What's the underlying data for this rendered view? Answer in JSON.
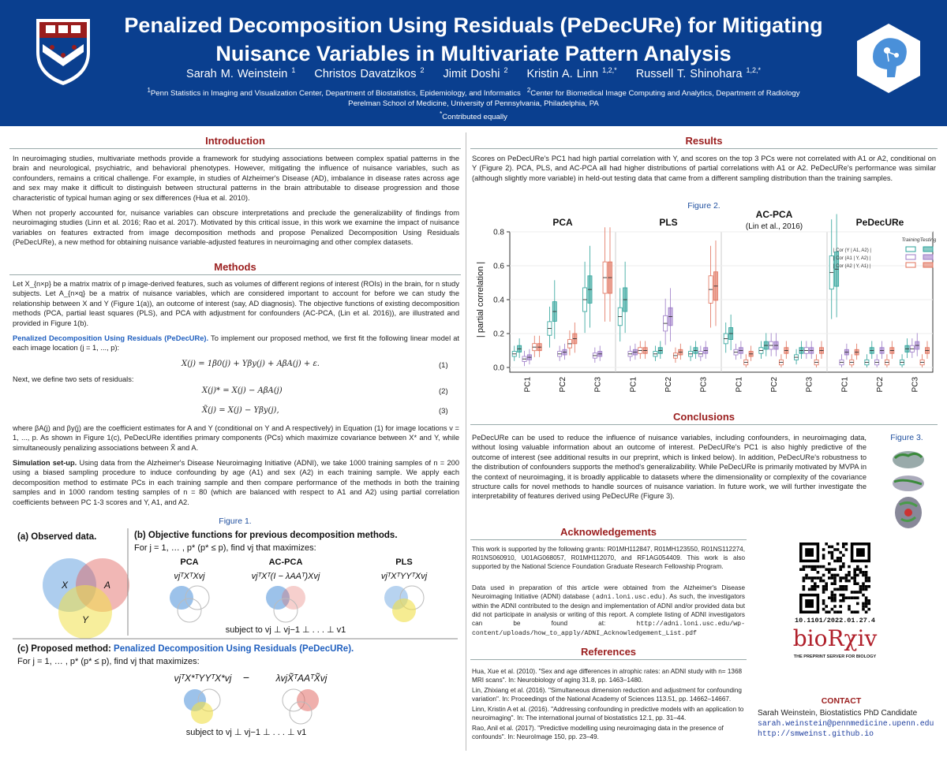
{
  "header": {
    "title_line1": "Penalized Decomposition Using Residuals (PeDecURe) for Mitigating",
    "title_line2": "Nuisance Variables in Multivariate Pattern Analysis",
    "authors": [
      {
        "name": "Sarah M. Weinstein",
        "sup": "1"
      },
      {
        "name": "Christos Davatzikos",
        "sup": "2"
      },
      {
        "name": "Jimit Doshi",
        "sup": "2"
      },
      {
        "name": "Kristin A. Linn",
        "sup": "1,2,*"
      },
      {
        "name": "Russell T. Shinohara",
        "sup": "1,2,*"
      }
    ],
    "affil_1": "Penn Statistics in Imaging and Visualization Center, Department of Biostatistics, Epidemiology, and Informatics",
    "affil_2": "Center for Biomedical Image Computing and Analytics, Department of Radiology",
    "affil_line2": "Perelman School of Medicine, University of Pennsylvania, Philadelphia, PA",
    "affil_equal": "Contributed equally",
    "sup1": "1",
    "sup2": "2",
    "supstar": "*"
  },
  "intro": {
    "title": "Introduction",
    "p1": "In neuroimaging studies, multivariate methods provide a framework for studying associations between complex spatial patterns in the brain and neurological, psychiatric, and behavioral phenotypes. However, mitigating the influence of nuisance variables, such as confounders, remains a critical challenge. For example, in studies of Alzheimer's Disease (AD), imbalance in disease rates across age and sex may make it difficult to distinguish between structural patterns in the brain attributable to disease progression and those characteristic of typical human aging or sex differences (Hua et al. 2010).",
    "p2": "When not properly accounted for, nuisance variables can obscure interpretations and preclude the generalizability of findings from neuroimaging studies (Linn et al. 2016; Rao et al. 2017). Motivated by this critical issue, in this work we examine the impact of nuisance variables on features extracted from image decomposition methods and propose Penalized Decomposition Using Residuals (PeDecURe), a new method for obtaining nuisance variable-adjusted features in neuroimaging and other complex datasets."
  },
  "methods": {
    "title": "Methods",
    "p1": "Let X_{n×p} be a matrix matrix of p image-derived features, such as volumes of different regions of interest (ROIs) in the brain, for n study subjects. Let A_{n×q} be a matrix of nuisance variables, which are considered important to account for before we can study the relationship between X and Y (Figure 1(a)), an outcome of interest (say, AD diagnosis). The objective functions of existing decomposition methods (PCA, partial least squares (PLS), and PCA with adjustment for confounders (AC-PCA, (Lin et al. 2016)), are illustrated and provided in Figure 1(b).",
    "p2_head": "Penalized Decomposition Using Residuals (PeDecURe).",
    "p2": "To implement our proposed method, we first fit the following linear model at each image location (j = 1, ..., p):",
    "eq1": "X(j) = 1β0(j) + Yβy(j) + AβA(j) + ε.",
    "eq1_num": "(1)",
    "p3": "Next, we define two sets of residuals:",
    "eq2": "X(j)* = X(j) − AβA(j)",
    "eq2_num": "(2)",
    "eq3": "X̃(j) = X(j) − Yβy(j),",
    "eq3_num": "(3)",
    "p4": "where βA(j) and βy(j) are the coefficient estimates for A and Y (conditional on Y and A respectively) in Equation (1) for image locations v = 1, ..., p. As shown in Figure 1(c), PeDecURe identifies primary components (PCs) which maximize covariance between X* and Y, while simultaneously penalizing associations between X̃ and A.",
    "p5_head": "Simulation set-up.",
    "p5": "Using data from the Alzheimer's Disease Neuroimaging Initiative (ADNI), we take 1000 training samples of n = 200 using a biased sampling procedure to induce confounding by age (A1) and sex (A2) in each training sample. We apply each decomposition method to estimate PCs in each training sample and then compare performance of the methods in both the training samples and in 1000 random testing samples of n = 80 (which are balanced with respect to A1 and A2) using partial correlation coefficients between PC 1-3 scores and Y, A1, and A2."
  },
  "figure1": {
    "caption": "Figure 1.",
    "a_label": "(a) Observed data.",
    "b_label": "(b) Objective functions for previous decomposition methods.",
    "b_sub": "For j = 1, … , p* (p* ≤ p), find vj that maximizes:",
    "var_x": "X",
    "var_a": "A",
    "var_y": "Y",
    "pca": "PCA",
    "pca_eq": "vjᵀXᵀXvj",
    "acpca": "AC-PCA",
    "acpca_eq": "vjᵀXᵀ(I − λAAᵀ)Xvj",
    "pls": "PLS",
    "pls_eq": "vjᵀXᵀYYᵀXvj",
    "subject_to": "subject to vj ⊥ vj−1 ⊥ . . . ⊥ v1",
    "c_label_pre": "(c) Proposed method: ",
    "c_label_name": "Penalized Decomposition Using Residuals (PeDecURe).",
    "c_sub": "For j = 1, … , p* (p* ≤ p), find vj that maximizes:",
    "c_eq1": "vjᵀX*ᵀYYᵀX*vj",
    "c_minus": "−",
    "c_eq2": "λvjX̃ᵀAAᵀX̃vj",
    "c_subject": "subject to vj ⊥ vj−1 ⊥ . . . ⊥ v1"
  },
  "results": {
    "title": "Results",
    "p1": "Scores on PeDecURe's PC1 had high partial correlation with Y, and scores on the top 3 PCs were not correlated with A1 or A2, conditional on Y (Figure 2). PCA, PLS, and AC-PCA all had higher distributions of partial correlations with A1 or A2. PeDecURe's performance was similar (although slightly more variable) in held-out testing data that came from a different sampling distribution than the training samples."
  },
  "chart_data": {
    "type": "box",
    "caption": "Figure 2.",
    "panels": [
      "PCA",
      "PLS",
      "AC-PCA",
      "PeDecURe"
    ],
    "panel_subtitles": [
      "",
      "",
      "(Lin et al., 2016)",
      ""
    ],
    "categories": [
      "PC1",
      "PC2",
      "PC3"
    ],
    "ylabel": "| partial correlation |",
    "ylim": [
      0,
      0.8
    ],
    "yticks": [
      "0.0",
      "0.2",
      "0.4",
      "0.6",
      "0.8"
    ],
    "legend": {
      "entries": [
        "| Cor (Y | A1, A2) |",
        "| Cor (A1 | Y, A2) |",
        "| Cor (A2 | Y, A1) |"
      ],
      "columns": [
        "Training",
        "Testing"
      ],
      "placement": "top-right"
    },
    "colors": {
      "y": "#2aa198",
      "a1": "#9b79c6",
      "a2": "#e0705a"
    },
    "series_order": [
      "y-train",
      "y-test",
      "a1-train",
      "a1-test",
      "a2-train",
      "a2-test"
    ],
    "medians": {
      "PCA": {
        "PC1": [
          0.08,
          0.11,
          0.05,
          0.06,
          0.12,
          0.12
        ],
        "PC2": [
          0.23,
          0.33,
          0.08,
          0.09,
          0.14,
          0.17
        ],
        "PC3": [
          0.4,
          0.46,
          0.07,
          0.08,
          0.53,
          0.53
        ]
      },
      "PLS": {
        "PC1": [
          0.3,
          0.4,
          0.08,
          0.09,
          0.1,
          0.1
        ],
        "PC2": [
          0.08,
          0.1,
          0.26,
          0.3,
          0.07,
          0.09
        ],
        "PC3": [
          0.08,
          0.1,
          0.08,
          0.1,
          0.46,
          0.48
        ]
      },
      "AC-PCA": {
        "PC1": [
          0.17,
          0.2,
          0.09,
          0.1,
          0.03,
          0.08
        ],
        "PC2": [
          0.1,
          0.13,
          0.13,
          0.13,
          0.03,
          0.1
        ],
        "PC3": [
          0.06,
          0.1,
          0.1,
          0.1,
          0.03,
          0.1
        ]
      },
      "PeDecURe": {
        "PC1": [
          0.56,
          0.58,
          0.03,
          0.09,
          0.03,
          0.09
        ],
        "PC2": [
          0.03,
          0.1,
          0.03,
          0.1,
          0.03,
          0.1
        ],
        "PC3": [
          0.03,
          0.11,
          0.11,
          0.13,
          0.03,
          0.1
        ]
      }
    }
  },
  "conclusions": {
    "title": "Conclusions",
    "p1": "PeDecURe can be used to reduce the influence of nuisance variables, including confounders, in neuroimaging data, without losing valuable information about an outcome of interest. PeDecURe's PC1 is also highly predictive of the outcome of interest (see additional results in our preprint, which is linked below). In addition, PeDecURe's robustness to the distribution of confounders supports the method's generalizability. While PeDecURe is primarily motivated by MVPA in the context of neuroimaging, it is broadly applicable to datasets where the dimensionality or complexity of the covariance structure calls for novel methods to handle sources of nuisance variation. In future work, we will further investigate the interpretability of features derived using PeDecURe (Figure 3).",
    "fig3_caption": "Figure 3."
  },
  "acknowledgements": {
    "title": "Acknowledgements",
    "p1": "This work is supported by the following grants: R01MH112847, R01MH123550, R01NS112274, R01NS060910, U01AG068057, R01MH112070, and RF1AG054409. This work is also supported by the National Science Foundation Graduate Research Fellowship Program.",
    "p2_pre": "Data used in preparation of this article were obtained from the Alzheimer's Disease Neuroimaging Initiative (ADNI) database ",
    "p2_link1": "(adni.loni.usc.edu)",
    "p2_mid": ". As such, the investigators within the ADNI contributed to the design and implementation of ADNI and/or provided data but did not participate in analysis or writing of this report. A complete listing of ADNI investigators can be found at: ",
    "p2_link2": "http://adni.loni.usc.edu/wp-content/uploads/how_to_apply/ADNI_Acknowledgement_List.pdf"
  },
  "references": {
    "title": "References",
    "items": [
      "Hua, Xue et al. (2010). \"Sex and age differences in atrophic rates: an ADNI study with n= 1368 MRI scans\". In: Neurobiology of aging 31.8, pp. 1463–1480.",
      "Lin, Zhixiang et al. (2016). \"Simultaneous dimension reduction and adjustment for confounding variation\". In: Proceedings of the National Academy of Sciences 113.51, pp. 14662–14667.",
      "Linn, Kristin A et al. (2016). \"Addressing confounding in predictive models with an application to neuroimaging\". In: The international journal of biostatistics 12.1, pp. 31–44.",
      "Rao, Anil et al. (2017). \"Predictive modelling using neuroimaging data in the presence of confounds\". In: NeuroImage 150, pp. 23–49."
    ]
  },
  "sidebar": {
    "doi": "10.1101/2022.01.27.4",
    "biorxiv": "bioRχiv",
    "biorxiv_tag": "THE PREPRINT SERVER FOR BIOLOGY",
    "contact_title": "CONTACT",
    "contact_name": "Sarah Weinstein, Biostatistics PhD Candidate",
    "contact_email": "sarah.weinstein@pennmedicine.upenn.edu",
    "contact_web": "http://smweinst.github.io"
  }
}
